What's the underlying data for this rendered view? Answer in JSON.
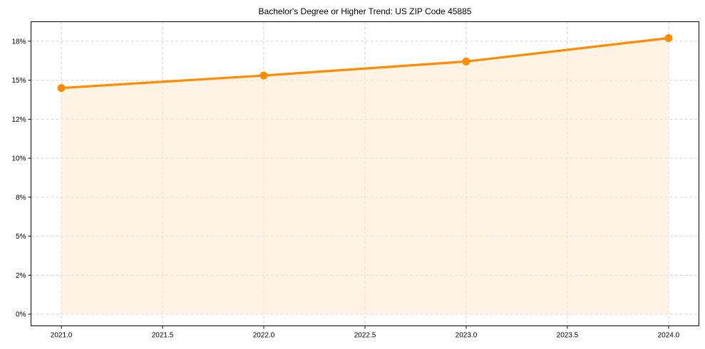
{
  "chart_data": {
    "type": "line",
    "title": "Bachelor's Degree or Higher Trend: US ZIP Code 45885",
    "xlabel": "",
    "ylabel": "",
    "x": [
      2021,
      2022,
      2023,
      2024
    ],
    "series": [
      {
        "name": "Bachelor's Degree or Higher",
        "values": [
          14.5,
          15.3,
          16.2,
          17.7
        ],
        "color": "#ff8c00",
        "fill_color": "#fdebd3",
        "marker": "circle",
        "area_fill": true
      }
    ],
    "xlim": [
      2020.85,
      2024.15
    ],
    "ylim": [
      -0.75,
      18.75
    ],
    "x_ticks": [
      2021.0,
      2021.5,
      2022.0,
      2022.5,
      2023.0,
      2023.5,
      2024.0
    ],
    "x_tick_labels": [
      "2021.0",
      "2021.5",
      "2022.0",
      "2022.5",
      "2023.0",
      "2023.5",
      "2024.0"
    ],
    "y_ticks": [
      0,
      2.5,
      5,
      7.5,
      10,
      12.5,
      15,
      17.5
    ],
    "y_tick_labels": [
      "0%",
      "2%",
      "5%",
      "8%",
      "10%",
      "12%",
      "15%",
      "18%"
    ],
    "grid": true,
    "grid_style": "dashed",
    "legend": null
  }
}
